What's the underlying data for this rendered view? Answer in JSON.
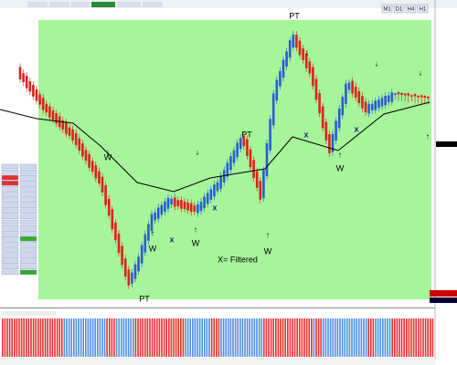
{
  "toolbar": {
    "timeframes": [
      "M1",
      "D1",
      "H4",
      "H1"
    ]
  },
  "annotations": {
    "pt": [
      "PT",
      "PT",
      "PT"
    ],
    "w": [
      "W",
      "W",
      "W",
      "W",
      "W"
    ],
    "x": [
      "x",
      "x",
      "x",
      "x"
    ],
    "legend": "X= Filtered"
  }
}
